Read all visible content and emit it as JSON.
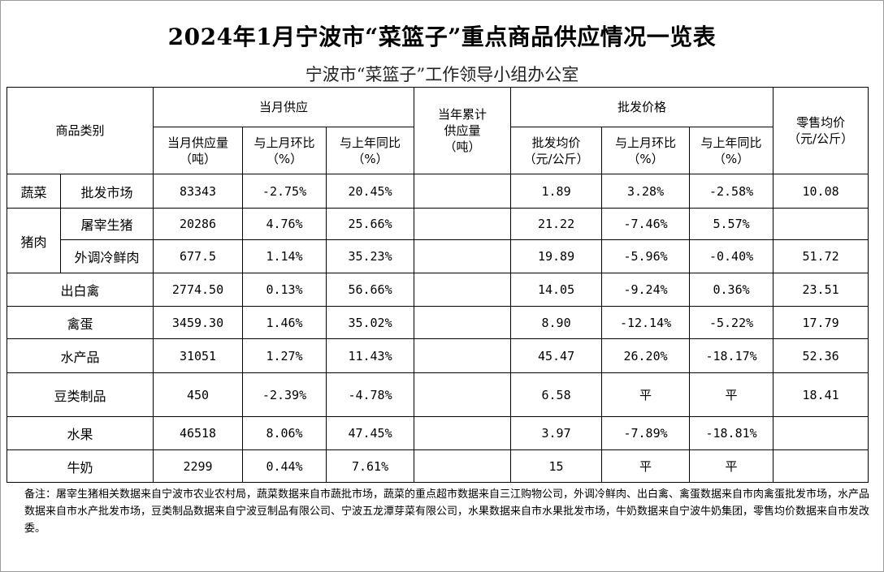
{
  "title": "2024年1月宁波市“菜篮子”重点商品供应情况一览表",
  "subtitle": "宁波市“菜篮子”工作领导小组办公室",
  "headers": {
    "category": "商品类别",
    "monthly_supply": "当月供应",
    "supply_volume": "当月供应量\n（吨）",
    "mom": "与上月环比\n（%）",
    "yoy": "与上年同比\n（%）",
    "cumulative": "当年累计\n供应量\n（吨）",
    "wholesale_price": "批发价格",
    "wholesale_avg": "批发均价\n（元/公斤）",
    "wholesale_mom": "与上月环比\n（%）",
    "wholesale_yoy": "与上年同比\n（%）",
    "retail_avg": "零售均价\n（元/公斤）"
  },
  "rows": [
    {
      "cat1": "蔬菜",
      "cat2": "批发市场",
      "supply": "83343",
      "mom": "-2.75%",
      "yoy": "20.45%",
      "cum": "",
      "price": "1.89",
      "p_mom": "3.28%",
      "p_yoy": "-2.58%",
      "retail": "10.08"
    },
    {
      "cat1": "猪肉",
      "cat2": "屠宰生猪",
      "supply": "20286",
      "mom": "4.76%",
      "yoy": "25.66%",
      "cum": "",
      "price": "21.22",
      "p_mom": "-7.46%",
      "p_yoy": "5.57%",
      "retail": ""
    },
    {
      "cat2": "外调冷鲜肉",
      "supply": "677.5",
      "mom": "1.14%",
      "yoy": "35.23%",
      "cum": "",
      "price": "19.89",
      "p_mom": "-5.96%",
      "p_yoy": "-0.40%",
      "retail": "51.72"
    },
    {
      "cat": "出白禽",
      "supply": "2774.50",
      "mom": "0.13%",
      "yoy": "56.66%",
      "cum": "",
      "price": "14.05",
      "p_mom": "-9.24%",
      "p_yoy": "0.36%",
      "retail": "23.51"
    },
    {
      "cat": "禽蛋",
      "supply": "3459.30",
      "mom": "1.46%",
      "yoy": "35.02%",
      "cum": "",
      "price": "8.90",
      "p_mom": "-12.14%",
      "p_yoy": "-5.22%",
      "retail": "17.79"
    },
    {
      "cat": "水产品",
      "supply": "31051",
      "mom": "1.27%",
      "yoy": "11.43%",
      "cum": "",
      "price": "45.47",
      "p_mom": "26.20%",
      "p_yoy": "-18.17%",
      "retail": "52.36"
    },
    {
      "cat": "豆类制品",
      "supply": "450",
      "mom": "-2.39%",
      "yoy": "-4.78%",
      "cum": "",
      "price": "6.58",
      "p_mom": "平",
      "p_yoy": "平",
      "retail": "18.41"
    },
    {
      "cat": "水果",
      "supply": "46518",
      "mom": "8.06%",
      "yoy": "47.45%",
      "cum": "",
      "price": "3.97",
      "p_mom": "-7.89%",
      "p_yoy": "-18.81%",
      "retail": ""
    },
    {
      "cat": "牛奶",
      "supply": "2299",
      "mom": "0.44%",
      "yoy": "7.61%",
      "cum": "",
      "price": "15",
      "p_mom": "平",
      "p_yoy": "平",
      "retail": ""
    }
  ],
  "note": "备注：屠宰生猪相关数据来自宁波市农业农村局，蔬菜数据来自市蔬批市场，蔬菜的重点超市数据来自三江购物公司，外调冷鲜肉、出白禽、禽蛋数据来自市肉禽蛋批发市场，水产品数据来自市水产批发市场，豆类制品数据来自宁波豆制品有限公司、宁波五龙潭芽菜有限公司，水果数据来自市水果批发市场，牛奶数据来自宁波牛奶集团，零售均价数据来自市发改委。"
}
